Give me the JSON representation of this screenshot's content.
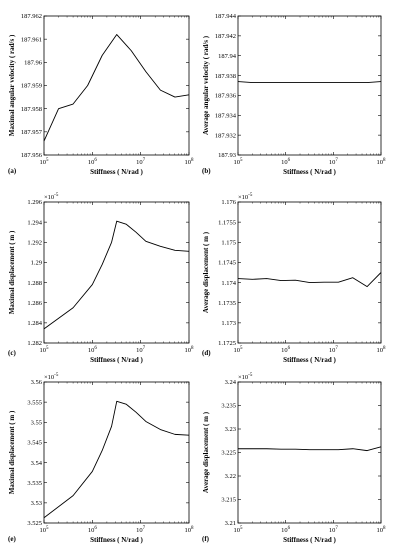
{
  "chart_data": [
    {
      "id": "a",
      "type": "line",
      "panel_label": "(a)",
      "xlabel": "Stiffness ( N/rad )",
      "ylabel": "Maximal angular velocity ( rad/s )",
      "x_scale": "log",
      "xlim": [
        100000,
        100000000
      ],
      "ylim": [
        187.956,
        187.962
      ],
      "y_multiplier": "",
      "x_ticks": [
        {
          "base": "10",
          "exp": "5"
        },
        {
          "base": "10",
          "exp": "6"
        },
        {
          "base": "10",
          "exp": "7"
        },
        {
          "base": "10",
          "exp": "8"
        }
      ],
      "y_ticks": [
        "187.956",
        "187.957",
        "187.958",
        "187.959",
        "187.96",
        "187.961",
        "187.962"
      ],
      "y_tick_values": [
        187.956,
        187.957,
        187.958,
        187.959,
        187.96,
        187.961,
        187.962
      ],
      "x": [
        100000,
        200000,
        400000,
        800000,
        1600000,
        3200000,
        6400000,
        12800000,
        25600000,
        51200000,
        100000000
      ],
      "y": [
        187.9566,
        187.958,
        187.9582,
        187.959,
        187.9603,
        187.9612,
        187.9605,
        187.9596,
        187.9588,
        187.9585,
        187.9586
      ]
    },
    {
      "id": "b",
      "type": "line",
      "panel_label": "(b)",
      "xlabel": "Stiffness ( N/rad )",
      "ylabel": "Average angular velocity ( rad/s )",
      "x_scale": "log",
      "xlim": [
        100000,
        100000000
      ],
      "ylim": [
        187.93,
        187.944
      ],
      "y_multiplier": "",
      "x_ticks": [
        {
          "base": "10",
          "exp": "5"
        },
        {
          "base": "10",
          "exp": "6"
        },
        {
          "base": "10",
          "exp": "7"
        },
        {
          "base": "10",
          "exp": "8"
        }
      ],
      "y_ticks": [
        "187.93",
        "187.932",
        "187.934",
        "187.936",
        "187.938",
        "187.94",
        "187.942",
        "187.944"
      ],
      "y_tick_values": [
        187.93,
        187.932,
        187.934,
        187.936,
        187.938,
        187.94,
        187.942,
        187.944
      ],
      "x": [
        100000,
        200000,
        400000,
        800000,
        1600000,
        3200000,
        6400000,
        12800000,
        25600000,
        51200000,
        100000000
      ],
      "y": [
        187.9374,
        187.9373,
        187.9373,
        187.9373,
        187.9373,
        187.9373,
        187.9373,
        187.9373,
        187.9373,
        187.9373,
        187.9374
      ]
    },
    {
      "id": "c",
      "type": "line",
      "panel_label": "(c)",
      "xlabel": "Stiffness ( N/rad )",
      "ylabel": "Maximal displacement ( m )",
      "x_scale": "log",
      "xlim": [
        100000,
        100000000
      ],
      "ylim": [
        1.282,
        1.296
      ],
      "y_multiplier": {
        "base": "×10",
        "exp": "-5"
      },
      "x_ticks": [
        {
          "base": "10",
          "exp": "5"
        },
        {
          "base": "10",
          "exp": "6"
        },
        {
          "base": "10",
          "exp": "7"
        },
        {
          "base": "10",
          "exp": "8"
        }
      ],
      "y_ticks": [
        "1.282",
        "1.284",
        "1.286",
        "1.288",
        "1.29",
        "1.292",
        "1.294",
        "1.296"
      ],
      "y_tick_values": [
        1.282,
        1.284,
        1.286,
        1.288,
        1.29,
        1.292,
        1.294,
        1.296
      ],
      "x": [
        100000,
        400000,
        1000000,
        1600000,
        2500000,
        3200000,
        5000000,
        8000000,
        12800000,
        25600000,
        51200000,
        100000000
      ],
      "y": [
        1.2834,
        1.2855,
        1.2878,
        1.2898,
        1.292,
        1.2941,
        1.2938,
        1.293,
        1.2921,
        1.2916,
        1.2912,
        1.2911
      ]
    },
    {
      "id": "d",
      "type": "line",
      "panel_label": "(d)",
      "xlabel": "Stiffness ( N/rad )",
      "ylabel": "Average displacement ( m )",
      "x_scale": "log",
      "xlim": [
        100000,
        100000000
      ],
      "ylim": [
        1.1725,
        1.176
      ],
      "y_multiplier": {
        "base": "×10",
        "exp": "-5"
      },
      "x_ticks": [
        {
          "base": "10",
          "exp": "5"
        },
        {
          "base": "10",
          "exp": "6"
        },
        {
          "base": "10",
          "exp": "7"
        },
        {
          "base": "10",
          "exp": "8"
        }
      ],
      "y_ticks": [
        "1.1725",
        "1.173",
        "1.1735",
        "1.174",
        "1.1745",
        "1.175",
        "1.1755",
        "1.176"
      ],
      "y_tick_values": [
        1.1725,
        1.173,
        1.1735,
        1.174,
        1.1745,
        1.175,
        1.1755,
        1.176
      ],
      "x": [
        100000,
        200000,
        400000,
        800000,
        1600000,
        3200000,
        6400000,
        12800000,
        25600000,
        51200000,
        100000000
      ],
      "y": [
        1.1741,
        1.17408,
        1.1741,
        1.17405,
        1.17406,
        1.174,
        1.17401,
        1.17401,
        1.17412,
        1.1739,
        1.17425
      ]
    },
    {
      "id": "e",
      "type": "line",
      "panel_label": "(e)",
      "xlabel": "Stiffness ( N/rad )",
      "ylabel": "Maximal displacement ( m )",
      "x_scale": "log",
      "xlim": [
        100000,
        100000000
      ],
      "ylim": [
        3.525,
        3.56
      ],
      "y_multiplier": {
        "base": "×10",
        "exp": "-5"
      },
      "x_ticks": [
        {
          "base": "10",
          "exp": "5"
        },
        {
          "base": "10",
          "exp": "6"
        },
        {
          "base": "10",
          "exp": "7"
        },
        {
          "base": "10",
          "exp": "8"
        }
      ],
      "y_ticks": [
        "3.525",
        "3.53",
        "3.535",
        "3.54",
        "3.545",
        "3.55",
        "3.555",
        "3.56"
      ],
      "y_tick_values": [
        3.525,
        3.53,
        3.535,
        3.54,
        3.545,
        3.55,
        3.555,
        3.56
      ],
      "x": [
        100000,
        400000,
        1000000,
        1600000,
        2500000,
        3200000,
        5000000,
        8000000,
        12800000,
        25600000,
        51200000,
        100000000
      ],
      "y": [
        3.5263,
        3.5318,
        3.5378,
        3.543,
        3.549,
        3.5552,
        3.5545,
        3.5525,
        3.5502,
        3.5482,
        3.547,
        3.5468
      ]
    },
    {
      "id": "f",
      "type": "line",
      "panel_label": "(f)",
      "xlabel": "Stiffness ( N/rad )",
      "ylabel": "Average displacement ( m )",
      "x_scale": "log",
      "xlim": [
        100000,
        100000000
      ],
      "ylim": [
        3.21,
        3.24
      ],
      "y_multiplier": {
        "base": "×10",
        "exp": "-5"
      },
      "x_ticks": [
        {
          "base": "10",
          "exp": "5"
        },
        {
          "base": "10",
          "exp": "6"
        },
        {
          "base": "10",
          "exp": "7"
        },
        {
          "base": "10",
          "exp": "8"
        }
      ],
      "y_ticks": [
        "3.21",
        "3.215",
        "3.22",
        "3.225",
        "3.23",
        "3.235",
        "3.24"
      ],
      "y_tick_values": [
        3.21,
        3.215,
        3.22,
        3.225,
        3.23,
        3.235,
        3.24
      ],
      "x": [
        100000,
        200000,
        400000,
        800000,
        1600000,
        3200000,
        6400000,
        12800000,
        25600000,
        51200000,
        100000000
      ],
      "y": [
        3.2258,
        3.2258,
        3.2258,
        3.2257,
        3.2257,
        3.2256,
        3.2256,
        3.2256,
        3.2258,
        3.2254,
        3.2262
      ]
    }
  ]
}
